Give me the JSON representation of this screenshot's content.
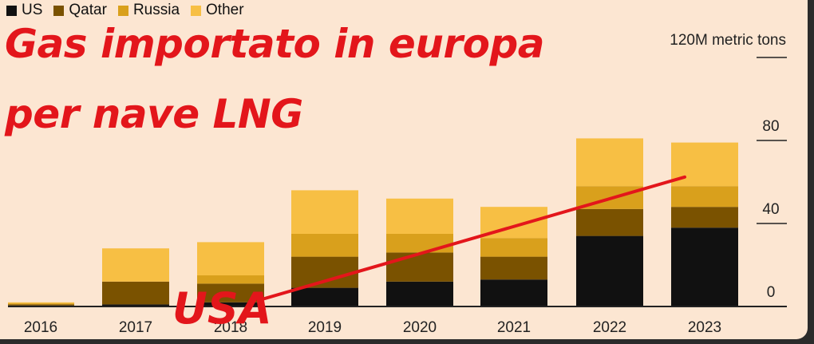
{
  "legend": {
    "items": [
      {
        "label": "US",
        "color": "#111111"
      },
      {
        "label": "Qatar",
        "color": "#7a5200"
      },
      {
        "label": "Russia",
        "color": "#d9a01c"
      },
      {
        "label": "Other",
        "color": "#f7bf44"
      }
    ]
  },
  "overlay": {
    "title_line1": "Gas importato in europa",
    "title_line2": "per nave LNG",
    "annotation": "USA",
    "annotation_color": "#e3161b"
  },
  "chart_data": {
    "type": "bar",
    "stacked": true,
    "categories": [
      "2016",
      "2017",
      "2018",
      "2019",
      "2020",
      "2021",
      "2022",
      "2023"
    ],
    "series": [
      {
        "name": "US",
        "color": "#111111",
        "values": [
          0.5,
          1,
          2,
          9,
          12,
          13,
          34,
          38
        ]
      },
      {
        "name": "Qatar",
        "color": "#7a5200",
        "values": [
          0.5,
          11,
          9,
          15,
          14,
          11,
          13,
          10
        ]
      },
      {
        "name": "Russia",
        "color": "#d9a01c",
        "values": [
          0.5,
          0,
          4,
          11,
          9,
          9,
          11,
          10
        ]
      },
      {
        "name": "Other",
        "color": "#f7bf44",
        "values": [
          0.5,
          16,
          16,
          21,
          17,
          15,
          23,
          21
        ]
      }
    ],
    "ylim": [
      0,
      120
    ],
    "yticks": [
      {
        "value": 0,
        "label": "0"
      },
      {
        "value": 40,
        "label": "40"
      },
      {
        "value": 80,
        "label": "80"
      },
      {
        "value": 120,
        "label": "120M metric tons"
      }
    ],
    "unit_label": "120M metric tons",
    "trend_line": {
      "from_category": "2018",
      "to_category": "2023",
      "from_value": 2,
      "to_value": 47,
      "color": "#e3161b"
    },
    "grid": false,
    "legend_position": "top-left"
  }
}
